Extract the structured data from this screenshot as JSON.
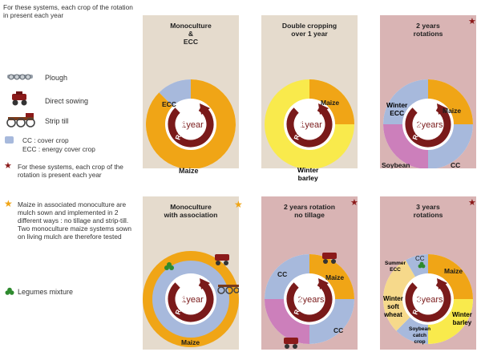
{
  "legend": {
    "intro": "For these systems, each crop of the rotation in present each year",
    "plough": "Plough",
    "direct_sowing": "Direct sowing",
    "strip_till": "Strip till",
    "cc_line1": "CC : cover crop",
    "cc_line2": "ECC : energy cover crop",
    "star_red_note": "For these systems, each crop of the rotation is present each year",
    "star_orange_note": "Maize in associated monoculture are mulch sown and implemented in 2 different ways : no tillage and strip-till. Two monoculture maize systems sown on living mulch are therefore tested",
    "legumes": "Legumes mixture"
  },
  "colors": {
    "maize": "#f0a516",
    "cc": "#a7b9dc",
    "winter_barley": "#f9ea4c",
    "soybean": "#cc7fbb",
    "winter_wheat": "#f6d98b",
    "arrow": "#7a1a1a",
    "panel_beige": "#e5dbcd",
    "panel_pink": "#d9b4b4",
    "star_red": "#8b1a1a",
    "star_orange": "#f0a516",
    "legume_green": "#2e8a2e"
  },
  "panels": [
    {
      "title": "Monoculture\n&\nECC",
      "center": "1year",
      "rotation": "Rotation",
      "labels": [
        "ECC",
        "Maize"
      ]
    },
    {
      "title": "Double cropping\nover 1 year",
      "center": "1year",
      "rotation": "Rotation",
      "labels": [
        "Maize",
        "Winter\nbarley"
      ]
    },
    {
      "title": "2 years\nrotations",
      "center": "2years",
      "rotation": "Rotation",
      "labels": [
        "Winter\nECC",
        "Maize",
        "Soybean",
        "CC"
      ]
    },
    {
      "title": "Monoculture\nwith association",
      "center": "1year",
      "rotation": "Rotation",
      "labels": [
        "Maize"
      ]
    },
    {
      "title": "2 years rotation\nno tillage",
      "center": "2years",
      "rotation": "Rotation",
      "labels": [
        "CC",
        "Maize",
        "CC"
      ]
    },
    {
      "title": "3 years\nrotations",
      "center": "3years",
      "rotation": "Rotation",
      "labels": [
        "Summer\nECC",
        "CC",
        "Maize",
        "Winter\nsoft\nwheat",
        "Winter\nbarley",
        "Soybean\ncatch\ncrop"
      ]
    }
  ],
  "stars": {
    "red": "★",
    "orange": "★"
  }
}
